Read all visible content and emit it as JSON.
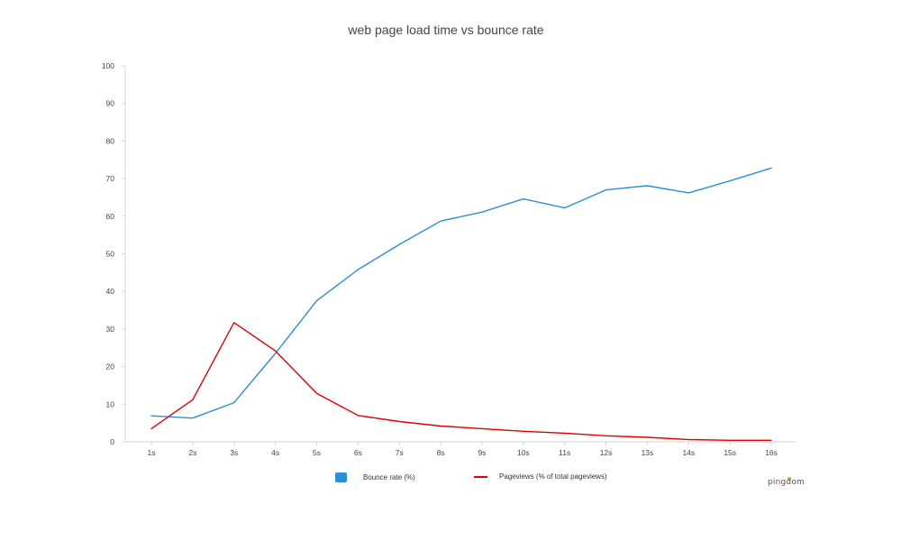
{
  "chart_data": {
    "type": "line",
    "title": "web page load time vs bounce rate",
    "xlabel": "",
    "ylabel": "",
    "categories": [
      "1s",
      "2s",
      "3s",
      "4s",
      "5s",
      "6s",
      "7s",
      "8s",
      "9s",
      "10s",
      "11s",
      "12s",
      "13s",
      "14s",
      "15s",
      "16s"
    ],
    "ylim": [
      0,
      100
    ],
    "yticks": [
      0,
      10,
      20,
      30,
      40,
      50,
      60,
      70,
      80,
      90,
      100
    ],
    "grid": false,
    "legend_position": "bottom",
    "series": [
      {
        "name": "Bounce rate  (%)",
        "color": "#2a8fd6",
        "legend_marker": "square",
        "values": [
          6.9,
          6.3,
          10.4,
          23.5,
          37.5,
          45.8,
          52.5,
          58.7,
          61.1,
          64.6,
          62.2,
          67.0,
          68.1,
          66.2,
          69.4,
          72.8
        ]
      },
      {
        "name": "Pageviews (% of total pageviews)",
        "color": "#e00000",
        "legend_marker": "line",
        "values": [
          3.5,
          11.2,
          31.7,
          24.2,
          12.9,
          7.0,
          5.4,
          4.2,
          3.5,
          2.8,
          2.3,
          1.6,
          1.2,
          0.6,
          0.4,
          0.4
        ]
      }
    ]
  },
  "branding": {
    "logo_text": "pingdom",
    "logo_accent_color": "#f5a623"
  }
}
